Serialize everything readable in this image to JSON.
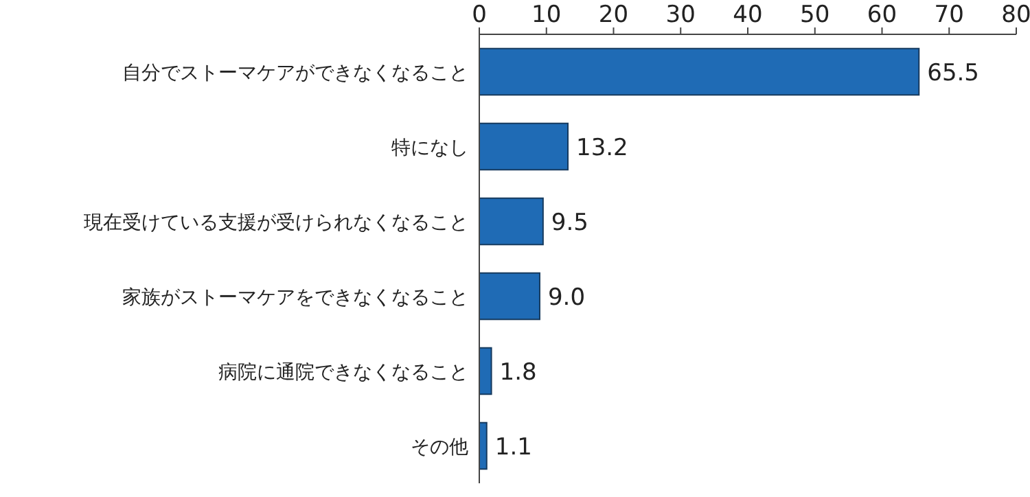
{
  "chart_data": {
    "type": "bar",
    "orientation": "horizontal",
    "categories": [
      "自分でストーマケアができなくなること",
      "特になし",
      "現在受けている支援が受けられなくなること",
      "家族がストーマケアをできなくなること",
      "病院に通院できなくなること",
      "その他"
    ],
    "values": [
      65.5,
      13.2,
      9.5,
      9.0,
      1.8,
      1.1
    ],
    "value_labels": [
      "65.5",
      "13.2",
      "9.5",
      "9.0",
      "1.8",
      "1.1"
    ],
    "color": "#1f6bb5",
    "xlim": [
      0,
      80
    ],
    "xticks": [
      0,
      10,
      20,
      30,
      40,
      50,
      60,
      70,
      80
    ],
    "grid": false
  }
}
